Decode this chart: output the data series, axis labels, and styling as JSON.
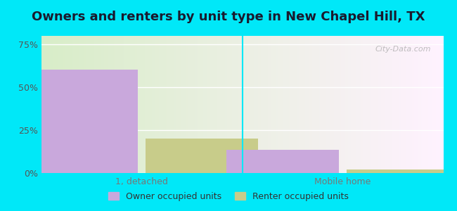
{
  "title": "Owners and renters by unit type in New Chapel Hill, TX",
  "categories": [
    "1, detached",
    "Mobile home"
  ],
  "owner_values": [
    60.5,
    13.5
  ],
  "renter_values": [
    20.0,
    2.0
  ],
  "owner_color": "#c9a8dc",
  "renter_color": "#c8cc8a",
  "background_outer": "#00e8f8",
  "yticks": [
    0,
    25,
    50,
    75
  ],
  "ylim": [
    0,
    80
  ],
  "bar_width": 0.28,
  "watermark": "City-Data.com",
  "legend_labels": [
    "Owner occupied units",
    "Renter occupied units"
  ],
  "title_fontsize": 13,
  "tick_fontsize": 9,
  "legend_fontsize": 9,
  "group_positions": [
    0.25,
    0.75
  ],
  "xlim": [
    0.0,
    1.0
  ]
}
